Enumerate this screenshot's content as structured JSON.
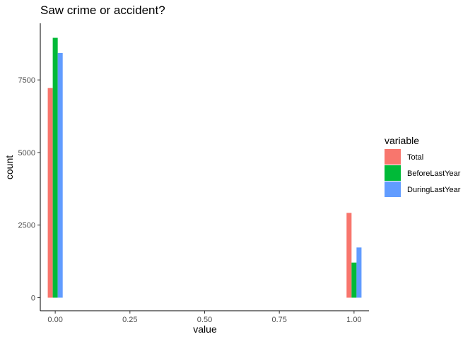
{
  "chart_data": {
    "type": "bar",
    "title": "Saw crime or accident?",
    "xlabel": "value",
    "ylabel": "count",
    "xlim": [
      -0.05,
      1.05
    ],
    "ylim": [
      -450,
      9450
    ],
    "x_ticks": [
      0.0,
      0.25,
      0.5,
      0.75,
      1.0
    ],
    "x_tick_labels": [
      "0.00",
      "0.25",
      "0.50",
      "0.75",
      "1.00"
    ],
    "y_ticks": [
      0,
      2500,
      5000,
      7500
    ],
    "y_tick_labels": [
      "0",
      "2500",
      "5000",
      "7500"
    ],
    "grid": false,
    "legend": {
      "title": "variable",
      "position": "right"
    },
    "bar_group_width": 0.05,
    "x": [
      0,
      1
    ],
    "series": [
      {
        "name": "Total",
        "color": "#F8766D",
        "values": [
          7220,
          2920
        ]
      },
      {
        "name": "BeforeLastYear",
        "color": "#00BA38",
        "values": [
          8950,
          1210
        ]
      },
      {
        "name": "DuringLastYear",
        "color": "#619CFF",
        "values": [
          8430,
          1730
        ]
      }
    ]
  }
}
